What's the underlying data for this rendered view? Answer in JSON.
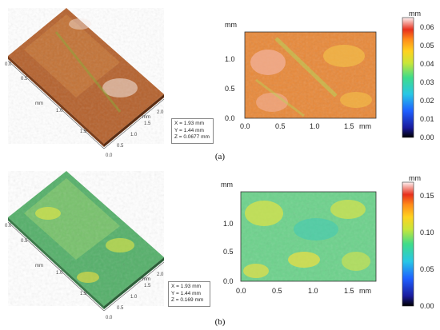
{
  "panels": [
    {
      "id": "a",
      "caption": "(a)",
      "info": {
        "x": "X = 1.93 mm",
        "y": "Y = 1.44 mm",
        "z": "Z = 0.0677 mm"
      },
      "iso_axis_labels": {
        "left": "mm",
        "right": "mm"
      },
      "iso_left_ticks": [
        "0.0",
        "0.5",
        "1.0",
        "1.5"
      ],
      "iso_right_ticks": [
        "0.0",
        "0.5",
        "1.0",
        "1.5",
        "2.0"
      ],
      "map_unit": "mm",
      "x_ticks": [
        "0.0",
        "0.5",
        "1.0",
        "1.5"
      ],
      "x_unit": "mm",
      "y_ticks": [
        "0.0",
        "0.5",
        "1.0"
      ],
      "colorbar_unit": "mm",
      "colorbar_ticks": [
        "0.00",
        "0.01",
        "0.02",
        "0.03",
        "0.04",
        "0.05",
        "0.06"
      ],
      "colors": {
        "base": "#e8893a",
        "accent1": "#f3c24a",
        "accent2": "#b8d35a",
        "accent3": "#f2b09a",
        "surface": "#b5622e"
      }
    },
    {
      "id": "b",
      "caption": "(b)",
      "info": {
        "x": "X = 1.93 mm",
        "y": "Y = 1.44 mm",
        "z": "Z = 0.169 mm"
      },
      "iso_axis_labels": {
        "left": "mm",
        "right": "mm"
      },
      "iso_left_ticks": [
        "0.0",
        "0.5",
        "1.0",
        "1.5"
      ],
      "iso_right_ticks": [
        "0.0",
        "0.5",
        "1.0",
        "1.5",
        "2.0"
      ],
      "map_unit": "mm",
      "x_ticks": [
        "0.0",
        "0.5",
        "1.0",
        "1.5"
      ],
      "x_unit": "mm",
      "y_ticks": [
        "0.0",
        "0.5",
        "1.0"
      ],
      "colorbar_unit": "mm",
      "colorbar_ticks": [
        "0.00",
        "0.05",
        "0.10",
        "0.15"
      ],
      "colors": {
        "base": "#6dd28c",
        "accent1": "#d9e24a",
        "accent2": "#3fc9b8",
        "accent3": "#f0e040",
        "surface": "#55b06a"
      }
    }
  ]
}
